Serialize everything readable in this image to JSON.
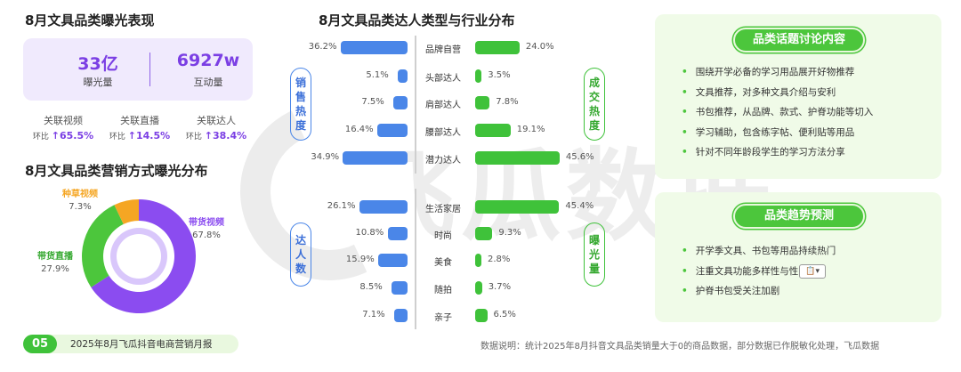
{
  "exposure": {
    "title": "8月文具品类曝光表现",
    "exposure_value": "33亿",
    "exposure_label": "曝光量",
    "interaction_value": "6927w",
    "interaction_label": "互动量",
    "stats": [
      {
        "label": "关联视频",
        "prefix": "环比",
        "arrow": "↑",
        "pct": "65.5%"
      },
      {
        "label": "关联直播",
        "prefix": "环比",
        "arrow": "↑",
        "pct": "14.5%"
      },
      {
        "label": "关联达人",
        "prefix": "环比",
        "arrow": "↑",
        "pct": "38.4%"
      }
    ]
  },
  "marketing": {
    "title": "8月文具品类营销方式曝光分布",
    "chart_data": {
      "type": "pie",
      "title": "8月文具品类营销方式曝光分布",
      "categories": [
        "带货视频",
        "带货直播",
        "种草视频"
      ],
      "values": [
        67.8,
        27.9,
        7.3
      ],
      "labels": [
        "67.8%",
        "27.9%",
        "7.3%"
      ],
      "colors": [
        "#8b4cf0",
        "#4cc63c",
        "#f5a623"
      ]
    }
  },
  "influencer": {
    "title": "8月文具品类达人类型与行业分布",
    "left_top_label": [
      "销",
      "售",
      "热",
      "度"
    ],
    "right_top_label": [
      "成",
      "交",
      "热",
      "度"
    ],
    "left_bottom_label": [
      "达",
      "人",
      "数"
    ],
    "right_bottom_label": [
      "曝",
      "光",
      "量"
    ],
    "chart_data": [
      {
        "type": "bar",
        "title": "达人类型",
        "categories": [
          "品牌自营",
          "头部达人",
          "肩部达人",
          "腰部达人",
          "潜力达人"
        ],
        "series": [
          {
            "name": "销售热度",
            "values": [
              36.2,
              5.1,
              7.5,
              16.4,
              34.9
            ],
            "labels": [
              "36.2%",
              "5.1%",
              "7.5%",
              "16.4%",
              "34.9%"
            ]
          },
          {
            "name": "成交热度",
            "values": [
              24.0,
              3.5,
              7.8,
              19.1,
              45.6
            ],
            "labels": [
              "24.0%",
              "3.5%",
              "7.8%",
              "19.1%",
              "45.6%"
            ]
          }
        ]
      },
      {
        "type": "bar",
        "title": "行业分布",
        "categories": [
          "生活家居",
          "时尚",
          "美食",
          "随拍",
          "亲子"
        ],
        "series": [
          {
            "name": "达人数",
            "values": [
              26.1,
              10.8,
              15.9,
              8.5,
              7.1
            ],
            "labels": [
              "26.1%",
              "10.8%",
              "15.9%",
              "8.5%",
              "7.1%"
            ]
          },
          {
            "name": "曝光量",
            "values": [
              45.4,
              9.3,
              2.8,
              3.7,
              6.5
            ],
            "labels": [
              "45.4%",
              "9.3%",
              "2.8%",
              "3.7%",
              "6.5%"
            ]
          }
        ]
      }
    ]
  },
  "topics": {
    "title": "品类话题讨论内容",
    "items": [
      "围绕开学必备的学习用品展开好物推荐",
      "文具推荐，对多种文具介绍与安利",
      "书包推荐，从品牌、款式、护脊功能等切入",
      "学习辅助，包含练字帖、便利贴等用品",
      "针对不同年龄段学生的学习方法分享"
    ]
  },
  "trends": {
    "title": "品类趋势预测",
    "items": [
      "开学季文具、书包等用品持续热门",
      "注重文具功能多样性与性",
      "护脊书包受关注加剧"
    ],
    "paste_icon": "clipboard-icon"
  },
  "watermark": "飞瓜数据",
  "footer": {
    "page_num": "05",
    "title": "2025年8月飞瓜抖音电商营销月报",
    "note": "数据说明：统计2025年8月抖音文具品类销量大于0的商品数据，部分数据已作脱敏化处理，飞瓜数据"
  }
}
